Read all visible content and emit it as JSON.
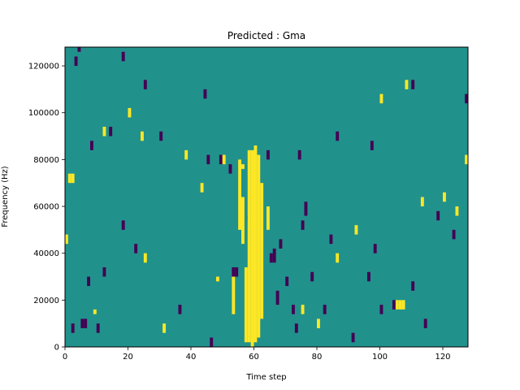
{
  "chart_data": {
    "type": "heatmap",
    "title": "Predicted : Gma",
    "xlabel": "Time step",
    "ylabel": "Frequency (Hz)",
    "xlim": [
      0,
      128
    ],
    "ylim": [
      0,
      128000
    ],
    "xticks": [
      0,
      20,
      40,
      60,
      80,
      100,
      120
    ],
    "yticks": [
      0,
      20000,
      40000,
      60000,
      80000,
      100000,
      120000
    ],
    "grid": false,
    "colors": {
      "background": "#21918c",
      "low": "#440154",
      "high": "#fde725"
    },
    "bin_size": {
      "x": 1,
      "y": 2000
    },
    "high_cells": [
      [
        57,
        2000,
        34000
      ],
      [
        58,
        2000,
        84000
      ],
      [
        59,
        0,
        84000
      ],
      [
        60,
        2000,
        86000
      ],
      [
        61,
        4000,
        82000
      ],
      [
        62,
        12000,
        70000
      ],
      [
        53,
        14000,
        30000
      ],
      [
        55,
        50000,
        80000
      ],
      [
        64,
        50000,
        60000
      ],
      [
        56,
        44000,
        64000
      ],
      [
        105,
        16000,
        20000
      ],
      [
        106,
        16000,
        20000
      ],
      [
        107,
        16000,
        20000
      ],
      [
        0,
        44000,
        48000
      ],
      [
        1,
        70000,
        74000
      ],
      [
        2,
        70000,
        74000
      ],
      [
        9,
        14000,
        16000
      ],
      [
        12,
        90000,
        94000
      ],
      [
        20,
        98000,
        102000
      ],
      [
        24,
        88000,
        92000
      ],
      [
        25,
        36000,
        40000
      ],
      [
        43,
        66000,
        70000
      ],
      [
        48,
        28000,
        30000
      ],
      [
        50,
        78000,
        82000
      ],
      [
        56,
        76000,
        78000
      ],
      [
        86,
        36000,
        40000
      ],
      [
        92,
        48000,
        52000
      ],
      [
        100,
        104000,
        108000
      ],
      [
        108,
        110000,
        114000
      ],
      [
        113,
        60000,
        64000
      ],
      [
        120,
        62000,
        66000
      ],
      [
        124,
        56000,
        60000
      ],
      [
        127,
        78000,
        82000
      ],
      [
        31,
        6000,
        10000
      ],
      [
        38,
        80000,
        84000
      ],
      [
        80,
        8000,
        12000
      ],
      [
        75,
        14000,
        18000
      ]
    ],
    "low_cells": [
      [
        2,
        6000,
        10000
      ],
      [
        5,
        8000,
        12000
      ],
      [
        6,
        8000,
        12000
      ],
      [
        7,
        26000,
        30000
      ],
      [
        8,
        84000,
        88000
      ],
      [
        10,
        6000,
        10000
      ],
      [
        12,
        30000,
        34000
      ],
      [
        14,
        90000,
        94000
      ],
      [
        18,
        50000,
        54000
      ],
      [
        22,
        40000,
        44000
      ],
      [
        25,
        110000,
        114000
      ],
      [
        30,
        88000,
        92000
      ],
      [
        36,
        14000,
        18000
      ],
      [
        45,
        78000,
        82000
      ],
      [
        46,
        0,
        4000
      ],
      [
        52,
        74000,
        78000
      ],
      [
        58,
        54000,
        56000
      ],
      [
        53,
        30000,
        34000
      ],
      [
        54,
        30000,
        34000
      ],
      [
        64,
        80000,
        84000
      ],
      [
        65,
        36000,
        40000
      ],
      [
        66,
        36000,
        42000
      ],
      [
        67,
        18000,
        24000
      ],
      [
        68,
        42000,
        46000
      ],
      [
        70,
        26000,
        30000
      ],
      [
        72,
        14000,
        18000
      ],
      [
        73,
        6000,
        10000
      ],
      [
        74,
        80000,
        84000
      ],
      [
        75,
        50000,
        54000
      ],
      [
        76,
        56000,
        62000
      ],
      [
        78,
        28000,
        32000
      ],
      [
        82,
        14000,
        18000
      ],
      [
        84,
        44000,
        48000
      ],
      [
        86,
        88000,
        92000
      ],
      [
        91,
        2000,
        6000
      ],
      [
        96,
        28000,
        32000
      ],
      [
        98,
        40000,
        44000
      ],
      [
        100,
        14000,
        18000
      ],
      [
        104,
        16000,
        20000
      ],
      [
        110,
        110000,
        114000
      ],
      [
        114,
        8000,
        12000
      ],
      [
        118,
        54000,
        58000
      ],
      [
        123,
        46000,
        50000
      ],
      [
        127,
        104000,
        108000
      ],
      [
        49,
        78000,
        82000
      ],
      [
        44,
        106000,
        110000
      ],
      [
        3,
        120000,
        124000
      ],
      [
        4,
        126000,
        128000
      ],
      [
        18,
        122000,
        126000
      ],
      [
        97,
        84000,
        88000
      ],
      [
        110,
        24000,
        28000
      ]
    ]
  }
}
